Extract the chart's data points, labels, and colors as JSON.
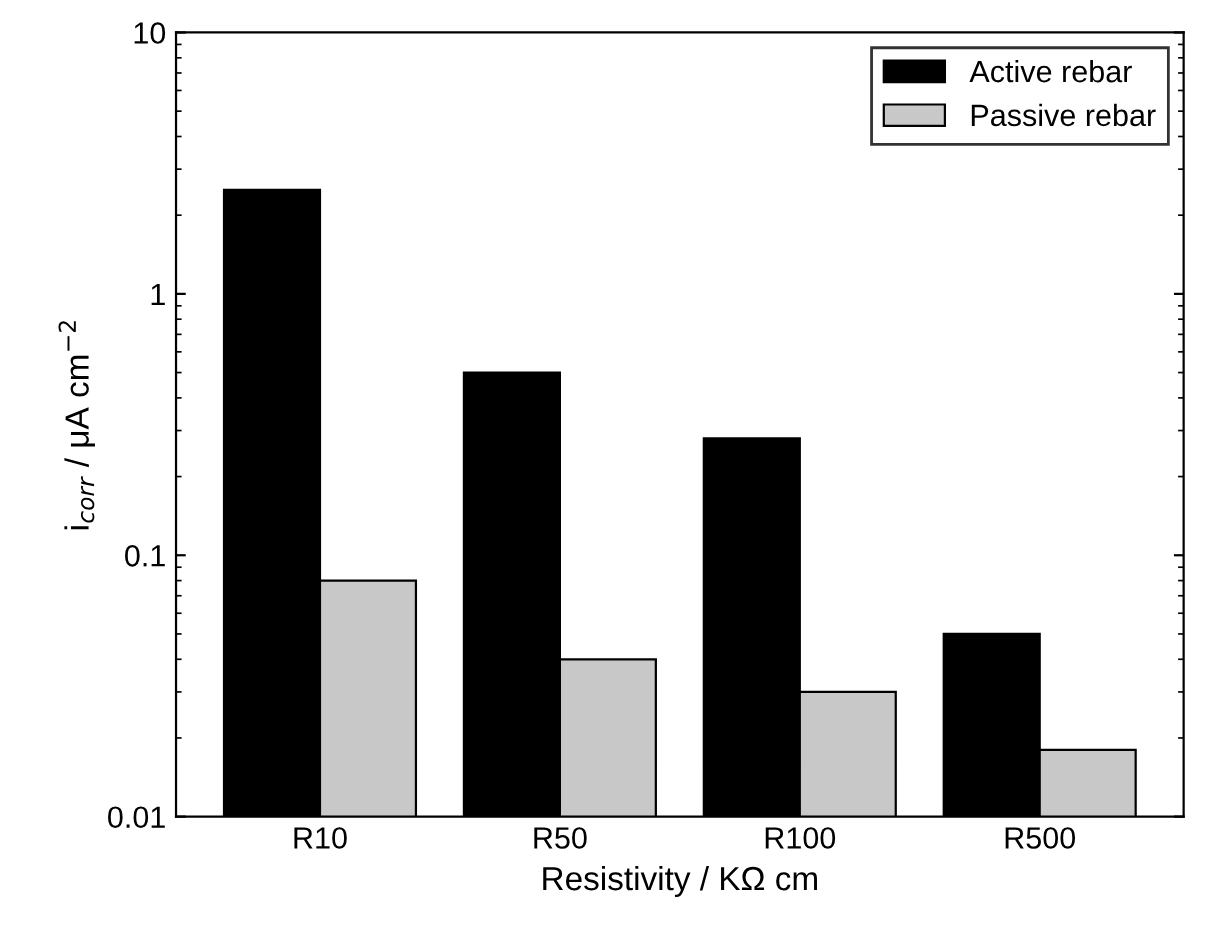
{
  "chart_data": {
    "type": "bar",
    "xlabel": "Resistivity / KΩ cm",
    "ylabel": "i$_{corr}$ / μA cm$^{−2}$",
    "categories": [
      "R10",
      "R50",
      "R100",
      "R500"
    ],
    "series": [
      {
        "name": "Active rebar",
        "color": "#000000",
        "values": [
          2.5,
          0.5,
          0.28,
          0.05
        ]
      },
      {
        "name": "Passive rebar",
        "color": "#c8c8c8",
        "values": [
          0.08,
          0.04,
          0.03,
          0.018
        ]
      }
    ],
    "log": "y",
    "ylim": [
      0.01,
      10
    ],
    "yticks": [
      0.01,
      0.1,
      1,
      10
    ],
    "legend": "top right",
    "grid": false
  }
}
